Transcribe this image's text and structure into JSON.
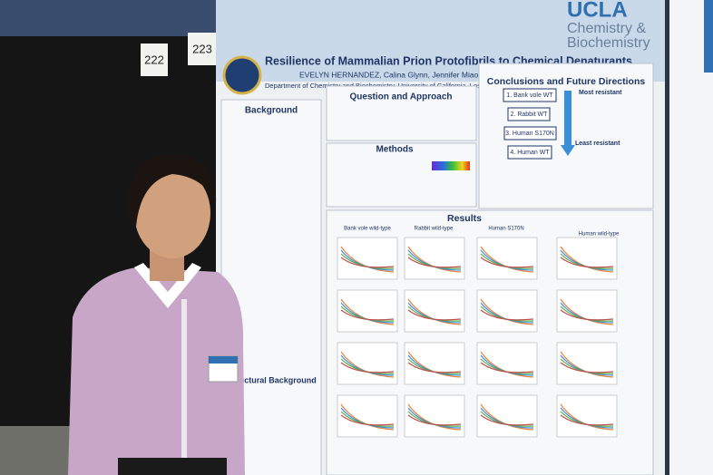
{
  "booth_numbers": [
    "222",
    "223"
  ],
  "poster": {
    "title": "Resilience of Mammalian Prion Protofibrils to Chemical Denaturants",
    "authors": "EVELYN HERNANDEZ, Calina Glynn, Jennifer Miao, and Jose A. Rodriguez",
    "affiliation": "Department of Chemistry and Biochemistry, University of California, Los Angeles, Los Angeles, California.",
    "logo": {
      "name": "UCLA",
      "department_line1": "Chemistry &",
      "department_line2": "Biochemistry"
    },
    "sections": {
      "background": "Background",
      "question": "Question and Approach",
      "methods": "Methods",
      "results": "Results",
      "conclusions": "Conclusions and Future Directions",
      "structural": "Structural Background"
    },
    "conclusions": {
      "most": "Most resistant",
      "least": "Least resistant",
      "ranking": [
        "1. Bank vole WT",
        "2. Rabbit WT",
        "3. Human S170N",
        "4. Human WT"
      ]
    },
    "results_columns": [
      "Bank vole wild-type",
      "Rabbit wild-type",
      "Human S170N",
      "Human wild-type"
    ]
  }
}
